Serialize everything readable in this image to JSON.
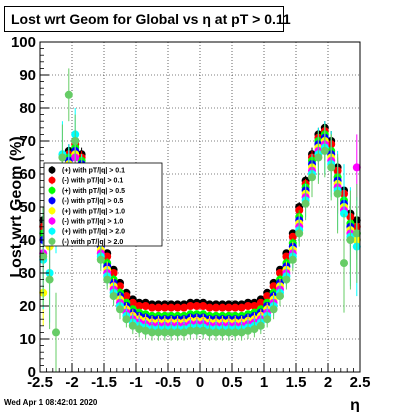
{
  "chart_data": {
    "type": "scatter",
    "title": "Lost wrt Geom for Global vs  η at pT > 0.11",
    "xlabel": "η",
    "ylabel": "Lost wrt Geom (%)",
    "xlim": [
      -2.5,
      2.5
    ],
    "ylim": [
      0,
      100
    ],
    "x_ticks": [
      "-2.5",
      "-2",
      "-1.5",
      "-1",
      "-0.5",
      "0",
      "0.5",
      "1",
      "1.5",
      "2",
      "2.5"
    ],
    "x_tick_values": [
      -2.5,
      -2,
      -1.5,
      -1,
      -0.5,
      0,
      0.5,
      1,
      1.5,
      2,
      2.5
    ],
    "y_ticks": [
      "0",
      "10",
      "20",
      "30",
      "40",
      "50",
      "60",
      "70",
      "80",
      "90",
      "100"
    ],
    "y_tick_values": [
      0,
      10,
      20,
      30,
      40,
      50,
      60,
      70,
      80,
      90,
      100
    ],
    "grid": true,
    "legend_position": "left",
    "eta": [
      -2.45,
      -2.35,
      -2.25,
      -2.15,
      -2.05,
      -1.95,
      -1.85,
      -1.75,
      -1.65,
      -1.55,
      -1.45,
      -1.35,
      -1.25,
      -1.15,
      -1.05,
      -0.95,
      -0.85,
      -0.75,
      -0.65,
      -0.55,
      -0.45,
      -0.35,
      -0.25,
      -0.15,
      -0.05,
      0.05,
      0.15,
      0.25,
      0.35,
      0.45,
      0.55,
      0.65,
      0.75,
      0.85,
      0.95,
      1.05,
      1.15,
      1.25,
      1.35,
      1.45,
      1.55,
      1.65,
      1.75,
      1.85,
      1.95,
      2.05,
      2.15,
      2.25,
      2.35,
      2.45
    ],
    "series": [
      {
        "name": "(+) with pT/|q| > 0.1",
        "color": "#000000",
        "values": [
          46,
          48,
          55,
          62,
          67,
          70,
          66,
          58,
          50,
          42,
          36,
          31,
          27,
          24,
          22,
          21,
          21,
          20.5,
          20.5,
          20.5,
          20.5,
          20.5,
          20.5,
          21,
          21,
          21,
          20.5,
          20.5,
          20.5,
          20.5,
          20.5,
          20.5,
          21,
          21,
          22,
          24,
          27,
          31,
          36,
          42,
          50,
          58,
          66,
          72,
          74,
          70,
          62,
          55,
          48,
          46
        ],
        "errors": [
          4,
          4,
          3,
          3,
          2,
          2,
          2,
          1.5,
          1.5,
          1,
          1,
          1,
          1,
          0.8,
          0.8,
          0.8,
          0.8,
          0.8,
          0.8,
          0.8,
          0.8,
          0.8,
          0.8,
          0.8,
          0.8,
          0.8,
          0.8,
          0.8,
          0.8,
          0.8,
          0.8,
          0.8,
          0.8,
          0.8,
          0.8,
          0.8,
          1,
          1,
          1,
          1,
          1.5,
          1.5,
          2,
          2,
          2,
          3,
          3,
          4,
          4,
          4
        ]
      },
      {
        "name": "(-) with pT/|q| > 0.1",
        "color": "#ff0000",
        "values": [
          44,
          47,
          54,
          61,
          66,
          69,
          65,
          57,
          49,
          41,
          35,
          30,
          26,
          23,
          21,
          20,
          20,
          19.5,
          19.5,
          19.5,
          19.5,
          19.5,
          19.5,
          20,
          20,
          20,
          19.5,
          19.5,
          19.5,
          19.5,
          19.5,
          19.5,
          20,
          20,
          21,
          23,
          26,
          30,
          35,
          41,
          49,
          57,
          65,
          71,
          73,
          69,
          61,
          54,
          47,
          44
        ],
        "errors": [
          4,
          4,
          3,
          3,
          2,
          2,
          2,
          1.5,
          1.5,
          1,
          1,
          1,
          1,
          0.8,
          0.8,
          0.8,
          0.8,
          0.8,
          0.8,
          0.8,
          0.8,
          0.8,
          0.8,
          0.8,
          0.8,
          0.8,
          0.8,
          0.8,
          0.8,
          0.8,
          0.8,
          0.8,
          0.8,
          0.8,
          0.8,
          0.8,
          1,
          1,
          1,
          1,
          1.5,
          1.5,
          2,
          2,
          2,
          3,
          3,
          4,
          4,
          4
        ]
      },
      {
        "name": "(+) with pT/|q| > 0.5",
        "color": "#00ff00",
        "values": [
          42,
          45,
          52,
          60,
          65,
          68,
          64,
          56,
          47,
          39,
          33,
          28,
          24,
          21,
          19,
          18,
          17.5,
          17,
          17,
          17,
          17,
          17,
          17,
          17.5,
          17.5,
          17.5,
          17,
          17,
          17,
          17,
          17,
          17,
          17.5,
          18,
          19,
          21,
          24,
          28,
          33,
          39,
          47,
          56,
          64,
          70,
          72,
          67,
          59,
          52,
          45,
          42
        ],
        "errors": [
          6,
          6,
          5,
          4,
          3,
          3,
          2,
          2,
          2,
          1.5,
          1.5,
          1.5,
          1.5,
          1.2,
          1.2,
          1.2,
          1.2,
          1.2,
          1.2,
          1.2,
          1.2,
          1.2,
          1.2,
          1.2,
          1.2,
          1.2,
          1.2,
          1.2,
          1.2,
          1.2,
          1.2,
          1.2,
          1.2,
          1.2,
          1.2,
          1.2,
          1.5,
          1.5,
          1.5,
          1.5,
          2,
          2,
          2,
          3,
          3,
          4,
          5,
          6,
          6,
          6
        ]
      },
      {
        "name": "(-) with pT/|q| > 0.5",
        "color": "#0000ff",
        "values": [
          40,
          44,
          51,
          59,
          64,
          67,
          63,
          55,
          46,
          38,
          32,
          27,
          23,
          20,
          18,
          17,
          16.5,
          16,
          16,
          16,
          16,
          16,
          16,
          16.5,
          16.5,
          16.5,
          16,
          16,
          16,
          16,
          16,
          16,
          16.5,
          17,
          18,
          20,
          23,
          27,
          32,
          38,
          46,
          55,
          63,
          69,
          71,
          66,
          58,
          51,
          44,
          40
        ],
        "errors": [
          6,
          6,
          5,
          4,
          3,
          3,
          2,
          2,
          2,
          1.5,
          1.5,
          1.5,
          1.5,
          1.2,
          1.2,
          1.2,
          1.2,
          1.2,
          1.2,
          1.2,
          1.2,
          1.2,
          1.2,
          1.2,
          1.2,
          1.2,
          1.2,
          1.2,
          1.2,
          1.2,
          1.2,
          1.2,
          1.2,
          1.2,
          1.2,
          1.2,
          1.5,
          1.5,
          1.5,
          1.5,
          2,
          2,
          2,
          3,
          3,
          4,
          5,
          6,
          6,
          6
        ]
      },
      {
        "name": "(+) with pT/|q| > 1.0",
        "color": "#ffff00",
        "values": [
          24,
          38,
          50,
          58,
          63,
          66,
          62,
          54,
          45,
          37,
          31,
          26,
          22,
          19,
          17,
          16,
          15.5,
          15,
          15,
          15,
          15,
          15,
          15,
          15.5,
          15.5,
          15.5,
          15,
          15,
          15,
          15,
          15,
          15,
          15.5,
          16,
          17,
          19,
          22,
          26,
          31,
          37,
          45,
          54,
          62,
          68,
          70,
          65,
          57,
          50,
          43,
          40
        ],
        "errors": [
          10,
          10,
          8,
          7,
          5,
          5,
          4,
          3,
          3,
          2.5,
          2.5,
          2.5,
          2,
          2,
          2,
          2,
          2,
          2,
          2,
          2,
          2,
          2,
          2,
          2,
          2,
          2,
          2,
          2,
          2,
          2,
          2,
          2,
          2,
          2,
          2,
          2,
          2,
          2.5,
          2.5,
          2.5,
          3,
          3,
          4,
          5,
          5,
          7,
          8,
          10,
          10,
          10
        ]
      },
      {
        "name": "(-) with pT/|q| > 1.0",
        "color": "#ff00ff",
        "values": [
          36,
          40,
          49,
          57,
          62,
          65,
          61,
          53,
          44,
          36,
          30,
          25,
          21,
          18,
          16,
          15,
          14.5,
          14,
          14,
          14,
          14,
          14,
          14,
          14.5,
          14.5,
          14.5,
          14,
          14,
          14,
          14,
          14,
          14,
          14.5,
          15,
          16,
          18,
          21,
          25,
          30,
          36,
          44,
          53,
          61,
          67,
          69,
          64,
          56,
          49,
          42,
          62
        ],
        "errors": [
          10,
          10,
          8,
          7,
          5,
          5,
          4,
          3,
          3,
          2.5,
          2.5,
          2.5,
          2,
          2,
          2,
          2,
          2,
          2,
          2,
          2,
          2,
          2,
          2,
          2,
          2,
          2,
          2,
          2,
          2,
          2,
          2,
          2,
          2,
          2,
          2,
          2,
          2,
          2.5,
          2.5,
          2.5,
          3,
          3,
          4,
          5,
          5,
          7,
          8,
          10,
          10,
          10
        ]
      },
      {
        "name": "(+) with pT/|q| > 2.0",
        "color": "#00ffff",
        "values": [
          34,
          30,
          48,
          66,
          61,
          72,
          60,
          52,
          43,
          35,
          29,
          24,
          20,
          17,
          15,
          14,
          13.5,
          13,
          13,
          13,
          13,
          13,
          13,
          13.5,
          13.5,
          13.5,
          13,
          13,
          13,
          13,
          13,
          13,
          13.5,
          14,
          15,
          17,
          20,
          24,
          29,
          35,
          43,
          52,
          60,
          66,
          68,
          63,
          55,
          48,
          41,
          38
        ],
        "errors": [
          15,
          15,
          12,
          10,
          8,
          8,
          6,
          5,
          4,
          3.5,
          3,
          3,
          3,
          2.5,
          2.5,
          2.5,
          2.5,
          2.5,
          2.5,
          2.5,
          2.5,
          2.5,
          2.5,
          2.5,
          2.5,
          2.5,
          2.5,
          2.5,
          2.5,
          2.5,
          2.5,
          2.5,
          2.5,
          2.5,
          2.5,
          2.5,
          3,
          3,
          3,
          3.5,
          4,
          5,
          6,
          8,
          8,
          10,
          12,
          15,
          15,
          15
        ]
      },
      {
        "name": "(-) with pT/|q| > 2.0",
        "color": "#66cc66",
        "values": [
          35,
          28,
          12,
          65,
          84,
          70,
          59,
          51,
          42,
          34,
          28,
          23,
          19,
          16,
          14,
          13,
          12.5,
          12,
          12,
          12,
          12,
          12,
          12,
          12.5,
          12.5,
          12.5,
          12,
          12,
          12,
          12,
          12,
          12,
          12.5,
          13,
          14,
          16,
          19,
          23,
          28,
          34,
          42,
          51,
          59,
          65,
          67,
          62,
          54,
          33,
          40,
          42
        ],
        "errors": [
          15,
          15,
          12,
          10,
          8,
          8,
          6,
          5,
          4,
          3.5,
          3,
          3,
          3,
          2.5,
          2.5,
          2.5,
          2.5,
          2.5,
          2.5,
          2.5,
          2.5,
          2.5,
          2.5,
          2.5,
          2.5,
          2.5,
          2.5,
          2.5,
          2.5,
          2.5,
          2.5,
          2.5,
          2.5,
          2.5,
          2.5,
          2.5,
          3,
          3,
          3,
          3.5,
          4,
          5,
          6,
          8,
          8,
          10,
          12,
          15,
          15,
          15
        ]
      }
    ]
  },
  "footer": "Wed Apr  1 08:42:01 2020"
}
